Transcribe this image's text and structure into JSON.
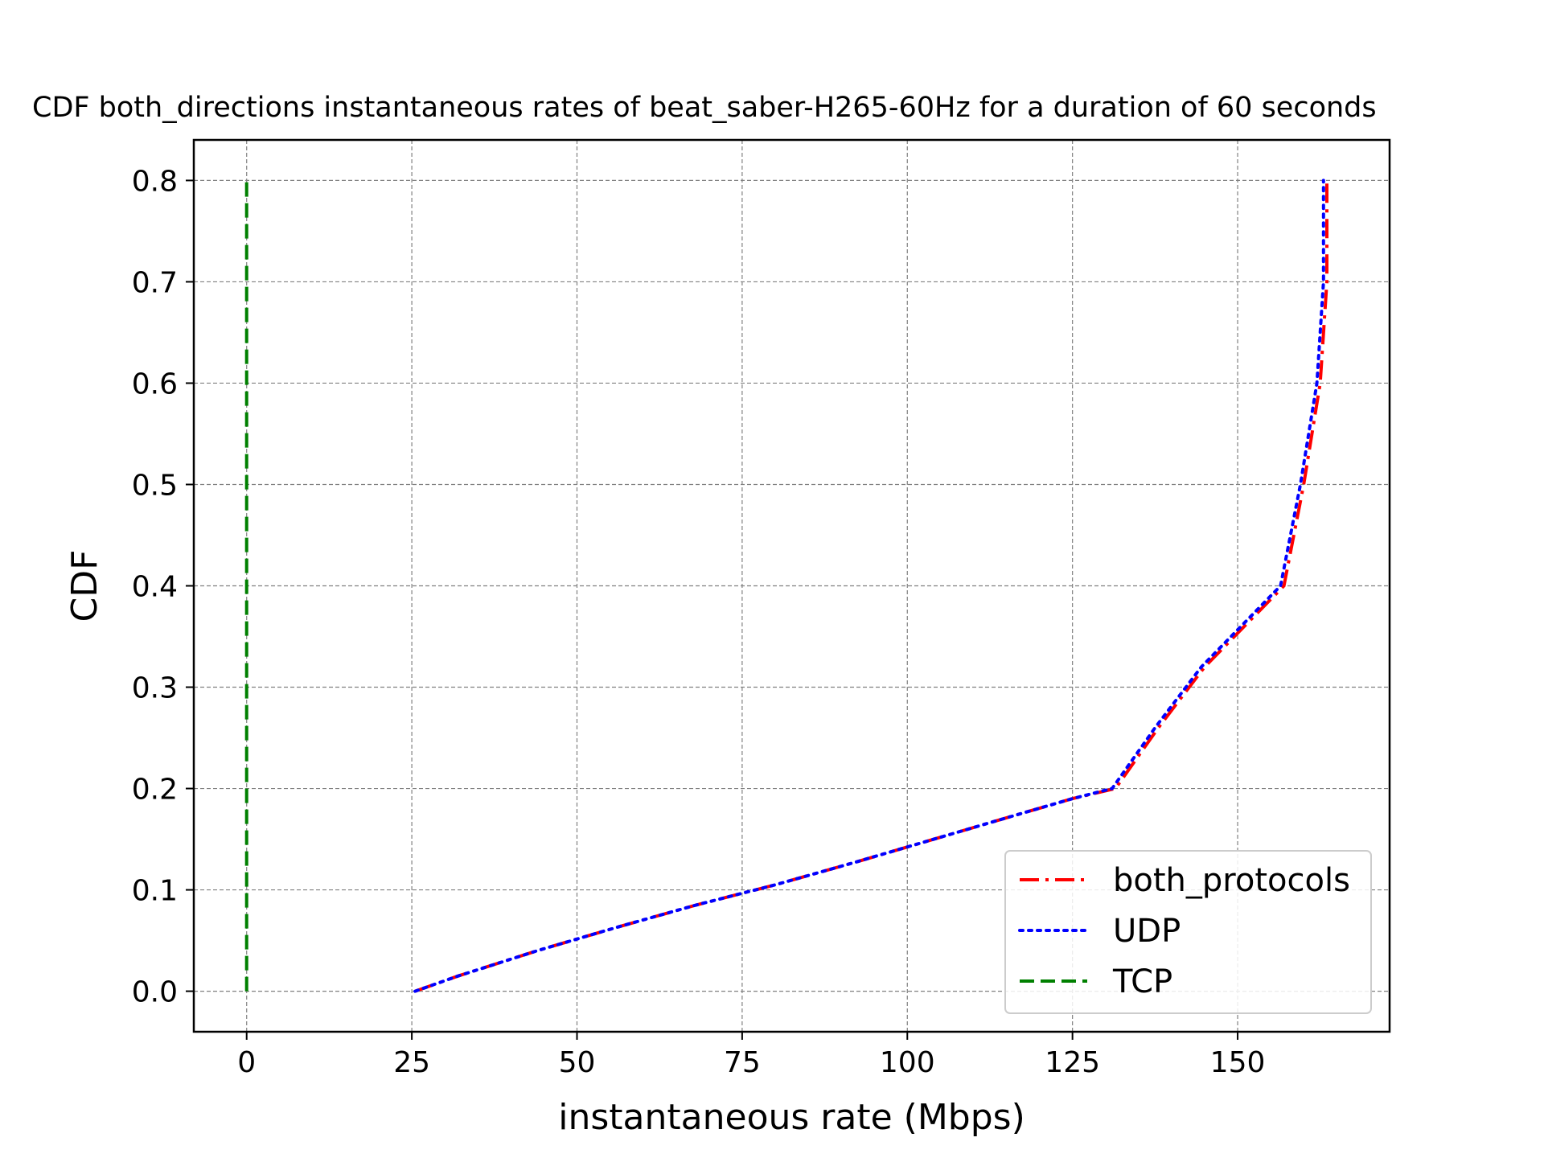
{
  "chart_data": {
    "type": "line",
    "title": "CDF both_directions instantaneous rates of beat_saber-H265-60Hz for a duration of 60 seconds",
    "xlabel": "instantaneous rate (Mbps)",
    "ylabel": "CDF",
    "xlim": [
      -8,
      173
    ],
    "ylim": [
      -0.04,
      0.84
    ],
    "x_ticks": [
      0,
      25,
      50,
      75,
      100,
      125,
      150
    ],
    "y_ticks": [
      0.0,
      0.1,
      0.2,
      0.3,
      0.4,
      0.5,
      0.6,
      0.7,
      0.8
    ],
    "grid": true,
    "legend_position": "lower right",
    "series": [
      {
        "name": "both_protocols",
        "color": "#ff0000",
        "style": "dashdot",
        "x": [
          25.5,
          32,
          44,
          56,
          68,
          80,
          92,
          104,
          116,
          125,
          131.5,
          138,
          145,
          151,
          157,
          160,
          162.5,
          163.5,
          163.5
        ],
        "y": [
          0.0,
          0.015,
          0.04,
          0.063,
          0.085,
          0.105,
          0.127,
          0.15,
          0.173,
          0.19,
          0.2,
          0.26,
          0.32,
          0.36,
          0.4,
          0.5,
          0.6,
          0.7,
          0.8
        ]
      },
      {
        "name": "UDP",
        "color": "#0000ff",
        "style": "dotted",
        "x": [
          25.5,
          32,
          44,
          56,
          68,
          80,
          92,
          104,
          116,
          125,
          131,
          137.5,
          144.5,
          150.5,
          156.5,
          159.5,
          162,
          163,
          163
        ],
        "y": [
          0.0,
          0.015,
          0.04,
          0.063,
          0.085,
          0.105,
          0.127,
          0.15,
          0.173,
          0.19,
          0.2,
          0.26,
          0.32,
          0.36,
          0.4,
          0.5,
          0.6,
          0.7,
          0.8
        ]
      },
      {
        "name": "TCP",
        "color": "#008000",
        "style": "dashed",
        "x": [
          0,
          0
        ],
        "y": [
          0.0,
          0.8
        ]
      }
    ]
  }
}
